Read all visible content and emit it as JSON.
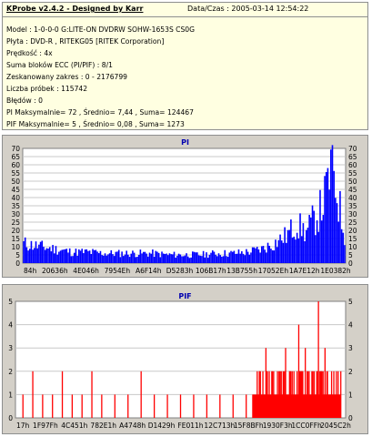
{
  "header": {
    "title": "KProbe v2.4.2 - Designed by Karr",
    "date": "Data/Czas : 2005-03-14 12:54:22"
  },
  "info_lines": [
    "Model : 1-0-0-0 G:LITE-ON DVDRW SOHW-1653S CS0G",
    "Płyta : DVD-R , RITEKG05 [RITEK Corporation]",
    "Prędkość : 4x",
    "Suma bloków ECC (PI/PIF) : 8/1",
    "Zeskanowany zakres : 0 - 2176799",
    "Liczba próbek : 115742",
    "Błędów : 0",
    "PI Maksymalnie= 72 , Średnio= 7,44 , Suma= 124467",
    "PIF Maksymalnie= 5 , Średnio= 0,08 , Suma= 1273"
  ],
  "colors": {
    "pi_series": "#0000ff",
    "pif_series": "#ff0000",
    "chart_title": "#0000b0"
  },
  "chart_data": [
    {
      "type": "area",
      "title": "PI",
      "xlabel": "",
      "ylabel": "",
      "ylim": [
        0,
        70
      ],
      "y_ticks": [
        0,
        5,
        10,
        15,
        20,
        25,
        30,
        35,
        40,
        45,
        50,
        55,
        60,
        65,
        70
      ],
      "x_tick_labels": [
        "84h",
        "20636h",
        "4E046h",
        "7954Eh",
        "A6F14h",
        "D5283h",
        "106B17h",
        "13B755h",
        "17052Eh",
        "1A7E12h",
        "1E0382h"
      ],
      "grid": true,
      "series": [
        {
          "color": "#0000ff",
          "max": 72,
          "x": [
            0.0,
            0.05,
            0.1,
            0.15,
            0.2,
            0.25,
            0.3,
            0.35,
            0.4,
            0.45,
            0.5,
            0.55,
            0.6,
            0.65,
            0.7,
            0.74,
            0.78,
            0.82,
            0.85,
            0.88,
            0.9,
            0.92,
            0.94,
            0.95,
            0.96,
            0.97,
            0.98,
            0.99,
            1.0
          ],
          "values": [
            14,
            12,
            10,
            8,
            8,
            7,
            7,
            7,
            7,
            6,
            6,
            6,
            7,
            7,
            8,
            10,
            14,
            20,
            28,
            22,
            30,
            36,
            48,
            60,
            72,
            58,
            46,
            32,
            20
          ]
        }
      ]
    },
    {
      "type": "bar",
      "title": "PIF",
      "xlabel": "",
      "ylabel": "",
      "ylim": [
        0,
        5
      ],
      "y_ticks": [
        0,
        1,
        2,
        3,
        4,
        5
      ],
      "x_tick_labels": [
        "17h",
        "1F97Fh",
        "4C451h",
        "782E1h",
        "A4748h",
        "D1429h",
        "FE011h",
        "12C713h",
        "15F8BFh",
        "1930F3h",
        "1CC0FFh",
        "2045C2h"
      ],
      "grid": true,
      "series": [
        {
          "color": "#ff0000",
          "max": 5,
          "x": [
            0.02,
            0.05,
            0.08,
            0.11,
            0.14,
            0.17,
            0.2,
            0.23,
            0.26,
            0.3,
            0.34,
            0.38,
            0.42,
            0.46,
            0.5,
            0.54,
            0.58,
            0.62,
            0.66,
            0.7,
            0.74,
            0.76,
            0.78,
            0.8,
            0.82,
            0.84,
            0.86,
            0.88,
            0.9,
            0.92,
            0.94,
            0.96,
            0.98
          ],
          "values": [
            1,
            2,
            1,
            1,
            2,
            1,
            1,
            2,
            1,
            1,
            1,
            2,
            1,
            1,
            1,
            1,
            1,
            1,
            1,
            1,
            2,
            3,
            2,
            2,
            3,
            2,
            4,
            3,
            2,
            5,
            3,
            2,
            2
          ]
        }
      ]
    }
  ]
}
